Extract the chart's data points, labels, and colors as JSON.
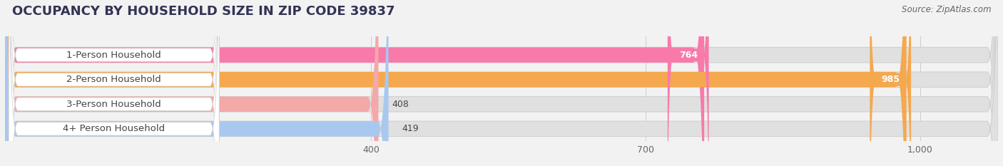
{
  "title": "OCCUPANCY BY HOUSEHOLD SIZE IN ZIP CODE 39837",
  "source": "Source: ZipAtlas.com",
  "categories": [
    "1-Person Household",
    "2-Person Household",
    "3-Person Household",
    "4+ Person Household"
  ],
  "values": [
    764,
    985,
    408,
    419
  ],
  "bar_colors": [
    "#f87aaa",
    "#f5a84e",
    "#f4a8a8",
    "#a8c8f0"
  ],
  "background_color": "#f2f2f2",
  "bar_background_color": "#e0e0e0",
  "label_bg_color": "#ffffff",
  "xlim_max": 1085,
  "xticks": [
    400,
    700,
    1000
  ],
  "xtick_labels": [
    "400",
    "700",
    "1,000"
  ],
  "label_fontsize": 9.5,
  "value_fontsize": 9,
  "title_fontsize": 13,
  "title_color": "#333355"
}
